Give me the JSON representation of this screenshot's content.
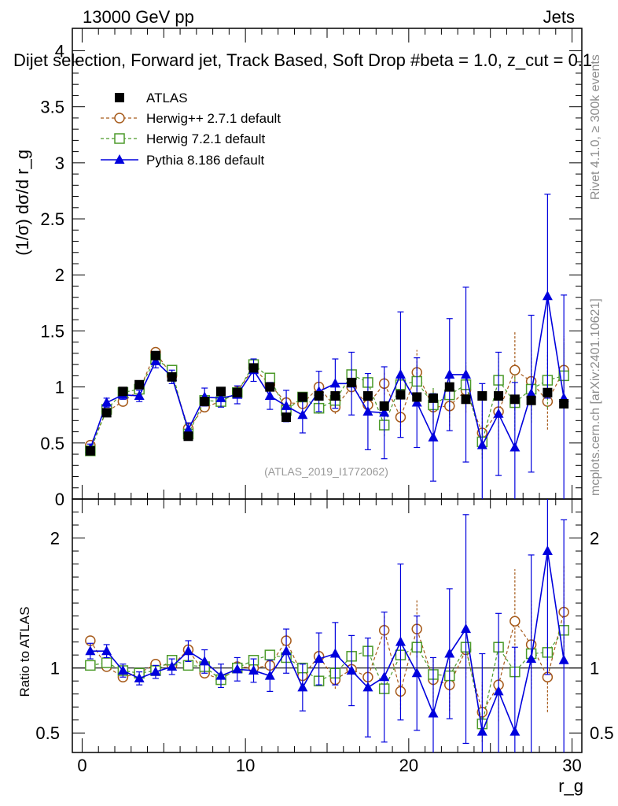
{
  "header": {
    "energy_label": "13000 GeV pp",
    "category_label": "Jets",
    "plot_title": "Dijet selection, Forward jet, Track Based, Soft Drop #beta = 1.0, z_cut = 0.1",
    "analysis_id": "(ATLAS_2019_I1772062)",
    "side_label_version": "Rivet 4.1.0, ≥ 300k events",
    "side_label_source": "mcplots.cern.ch [arXiv:2401.10621]"
  },
  "chart_data": [
    {
      "panel": "main",
      "type": "line",
      "ylabel": "(1/σ) dσ/d r_g",
      "xlabel": "",
      "xlim": [
        -0.6,
        30.6
      ],
      "ylim": [
        0,
        4.2
      ],
      "yticks": [
        0,
        0.5,
        1,
        1.5,
        2,
        2.5,
        3,
        3.5,
        4
      ],
      "ytick_labels": [
        "0",
        "0.5",
        "1",
        "1.5",
        "2",
        "2.5",
        "3",
        "3.5",
        "4"
      ],
      "legend_position": "top-left",
      "x": [
        0.5,
        1.5,
        2.5,
        3.5,
        4.5,
        5.5,
        6.5,
        7.5,
        8.5,
        9.5,
        10.5,
        11.5,
        12.5,
        13.5,
        14.5,
        15.5,
        16.5,
        17.5,
        18.5,
        19.5,
        20.5,
        21.5,
        22.5,
        23.5,
        24.5,
        25.5,
        26.5,
        27.5,
        28.5,
        29.5
      ],
      "series": [
        {
          "name": "ATLAS",
          "style": "data",
          "color": "#000000",
          "values": [
            0.43,
            0.77,
            0.96,
            1.02,
            1.28,
            1.09,
            0.56,
            0.87,
            0.96,
            0.95,
            1.17,
            1.0,
            0.73,
            0.91,
            0.92,
            0.92,
            1.04,
            0.92,
            0.83,
            0.93,
            0.91,
            0.9,
            1.0,
            0.89,
            0.92,
            0.92,
            0.89,
            0.88,
            0.95,
            0.85
          ],
          "errors": [
            0.02,
            0.02,
            0.02,
            0.02,
            0.03,
            0.02,
            0.02,
            0.03,
            0.03,
            0.03,
            0.03,
            0.03,
            0.03,
            0.03,
            0.03,
            0.03,
            0.04,
            0.04,
            0.04,
            0.04,
            0.04,
            0.04,
            0.04,
            0.04,
            0.04,
            0.04,
            0.04,
            0.04,
            0.04,
            0.04
          ]
        },
        {
          "name": "Herwig++ 2.7.1 default",
          "style": "circle-dashed",
          "color": "#a65a1a",
          "values": [
            0.48,
            0.78,
            0.87,
            0.97,
            1.31,
            1.1,
            0.63,
            0.82,
            0.87,
            0.96,
            1.17,
            1.02,
            0.86,
            0.85,
            1.0,
            0.82,
            1.0,
            0.84,
            1.03,
            0.73,
            1.13,
            0.82,
            0.83,
            0.97,
            0.59,
            0.78,
            1.15,
            1.05,
            0.87,
            1.15
          ],
          "errors": [
            0.02,
            0.02,
            0.02,
            0.02,
            0.03,
            0.03,
            0.02,
            0.03,
            0.03,
            0.03,
            0.04,
            0.04,
            0.05,
            0.05,
            0.05,
            0.06,
            0.07,
            0.08,
            0.1,
            0.12,
            0.2,
            0.15,
            0.18,
            0.2,
            0.2,
            0.25,
            0.35,
            0.3,
            0.25,
            0.3
          ]
        },
        {
          "name": "Herwig 7.2.1 default",
          "style": "square-dashed",
          "color": "#4c9a2a",
          "values": [
            0.43,
            0.8,
            0.95,
            0.98,
            1.25,
            1.15,
            0.58,
            0.88,
            0.87,
            0.95,
            1.2,
            1.08,
            0.79,
            0.91,
            0.81,
            0.88,
            1.11,
            1.04,
            0.66,
            1.02,
            1.05,
            0.84,
            0.93,
            1.02,
            0.51,
            1.06,
            0.86,
            0.98,
            1.06,
            1.1
          ],
          "errors": [
            0.02,
            0.02,
            0.02,
            0.02,
            0.03,
            0.03,
            0.02,
            0.03,
            0.03,
            0.03,
            0.04,
            0.04,
            0.05,
            0.05,
            0.05,
            0.06,
            0.07,
            0.08,
            0.1,
            0.15,
            0.15,
            0.15,
            0.18,
            0.2,
            0.15,
            0.2,
            0.25,
            0.3,
            0.25,
            0.3
          ]
        },
        {
          "name": "Pythia 8.186 default",
          "style": "triangle-solid",
          "color": "#0000dd",
          "values": [
            0.45,
            0.86,
            0.93,
            0.92,
            1.23,
            1.09,
            0.62,
            0.91,
            0.9,
            0.93,
            1.15,
            0.92,
            0.83,
            0.75,
            0.96,
            1.03,
            1.03,
            0.78,
            0.77,
            1.11,
            0.86,
            0.55,
            1.11,
            1.11,
            0.48,
            0.76,
            0.46,
            0.94,
            1.81,
            0.9
          ],
          "errors": [
            0.04,
            0.04,
            0.04,
            0.05,
            0.06,
            0.06,
            0.06,
            0.08,
            0.08,
            0.08,
            0.1,
            0.12,
            0.14,
            0.16,
            0.18,
            0.22,
            0.28,
            0.34,
            0.41,
            0.56,
            0.4,
            0.39,
            0.5,
            0.78,
            0.55,
            0.55,
            0.58,
            0.7,
            0.91,
            0.92
          ]
        }
      ]
    },
    {
      "panel": "ratio",
      "type": "line",
      "ylabel": "Ratio to ATLAS",
      "xlabel": "r_g",
      "xlim": [
        -0.6,
        30.6
      ],
      "ylim": [
        0.35,
        2.3
      ],
      "reference_line": 1,
      "yticks": [
        0.5,
        1,
        2
      ],
      "ytick_labels": [
        "0.5",
        "1",
        "2"
      ],
      "xticks": [
        0,
        10,
        20,
        30
      ],
      "xtick_labels": [
        "0",
        "10",
        "20",
        "30"
      ],
      "series": [
        {
          "name": "Herwig++ 2.7.1 default",
          "values": [
            1.21,
            1.01,
            0.93,
            0.96,
            1.03,
            1.02,
            1.14,
            0.96,
            0.91,
            1.01,
            1.0,
            1.02,
            1.21,
            0.94,
            1.09,
            0.91,
            0.99,
            0.93,
            1.29,
            0.82,
            1.3,
            0.91,
            0.87,
            1.14,
            0.66,
            0.87,
            1.36,
            1.18,
            0.93,
            1.43
          ],
          "errors": [
            0.03,
            0.03,
            0.03,
            0.03,
            0.03,
            0.03,
            0.04,
            0.04,
            0.04,
            0.04,
            0.04,
            0.05,
            0.06,
            0.06,
            0.06,
            0.07,
            0.08,
            0.09,
            0.12,
            0.14,
            0.22,
            0.17,
            0.2,
            0.22,
            0.23,
            0.28,
            0.4,
            0.34,
            0.27,
            0.36
          ]
        },
        {
          "name": "Herwig 7.2.1 default",
          "values": [
            1.02,
            1.04,
            0.98,
            0.96,
            0.98,
            1.06,
            1.02,
            1.01,
            0.91,
            1.0,
            1.06,
            1.1,
            1.08,
            1.0,
            0.9,
            0.96,
            1.09,
            1.13,
            0.84,
            1.1,
            1.16,
            0.95,
            0.94,
            1.16,
            0.57,
            1.16,
            0.97,
            1.11,
            1.12,
            1.29
          ]
        },
        {
          "name": "Pythia 8.186 default",
          "values": [
            1.13,
            1.13,
            0.98,
            0.92,
            0.97,
            1.01,
            1.13,
            1.05,
            0.94,
            0.99,
            0.98,
            0.94,
            1.13,
            0.85,
            1.07,
            1.11,
            0.98,
            0.85,
            0.93,
            1.2,
            0.96,
            0.65,
            1.11,
            1.3,
            0.51,
            0.82,
            0.51,
            1.07,
            1.9,
            1.06
          ],
          "errors": [
            0.06,
            0.05,
            0.05,
            0.05,
            0.05,
            0.06,
            0.08,
            0.09,
            0.09,
            0.09,
            0.09,
            0.12,
            0.17,
            0.18,
            0.2,
            0.24,
            0.27,
            0.38,
            0.5,
            0.6,
            0.44,
            0.43,
            0.5,
            0.88,
            0.6,
            0.6,
            0.65,
            0.8,
            0.95,
            1.08
          ]
        }
      ]
    }
  ]
}
